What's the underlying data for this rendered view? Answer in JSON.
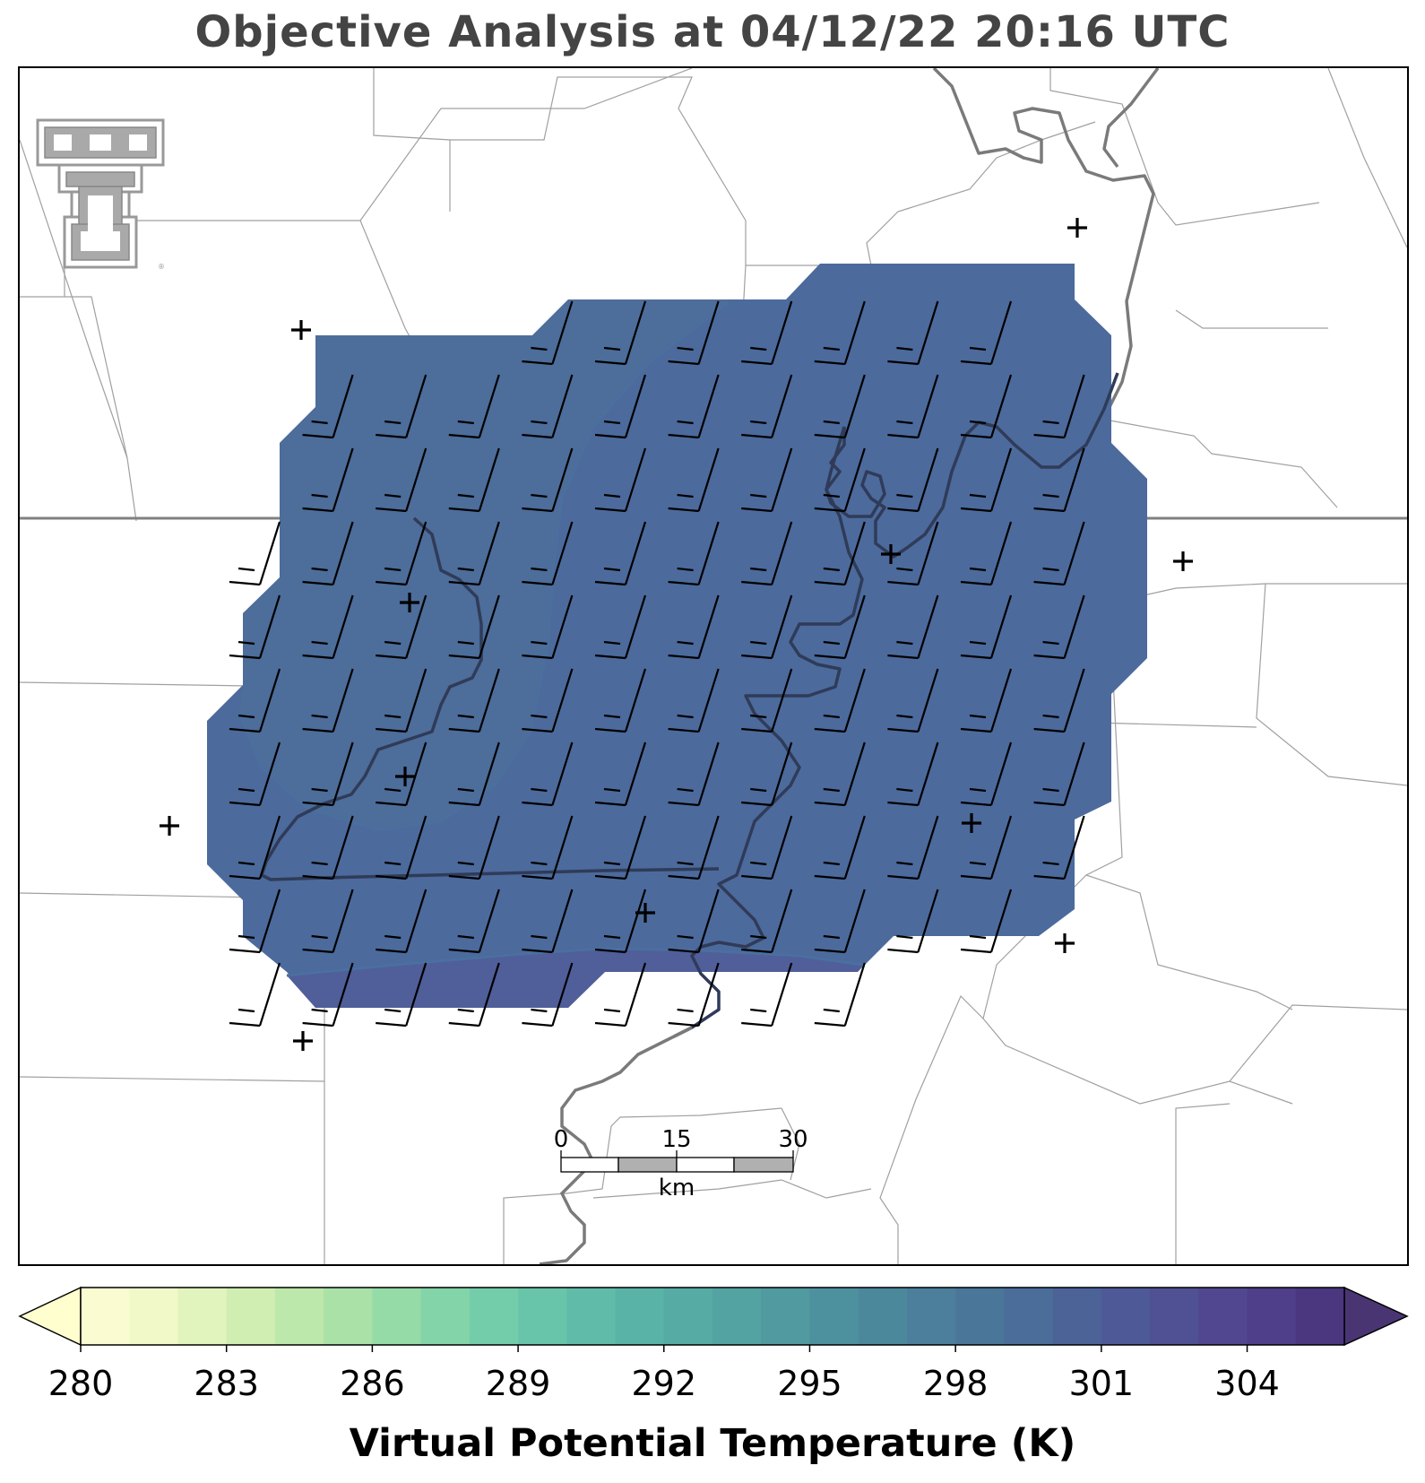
{
  "title": "Objective Analysis at 04/12/22 20:16 UTC",
  "colorbar": {
    "label": "Virtual Potential Temperature (K)",
    "ticks": [
      "280",
      "283",
      "286",
      "289",
      "292",
      "295",
      "298",
      "301",
      "304"
    ],
    "min": 280,
    "max": 306,
    "step": 1,
    "extend": "both",
    "colors": [
      "#fbfbd1",
      "#f1f9c9",
      "#e2f4bd",
      "#d0eeb2",
      "#bde8ab",
      "#a9e1a7",
      "#95dba7",
      "#83d4a9",
      "#74cdaa",
      "#68c5aa",
      "#60bca9",
      "#5ab3a7",
      "#56aba5",
      "#53a3a2",
      "#509aa0",
      "#4e919e",
      "#4c889c",
      "#4b7f9b",
      "#4a769a",
      "#4b6d99",
      "#4c6398",
      "#4e5997",
      "#505094",
      "#514790",
      "#4f3e89",
      "#4b3680"
    ],
    "under_color": "#fefecf",
    "over_color": "#4a3573"
  },
  "map": {
    "analysis_fill_color": "#4c6a9c",
    "warm_pocket_color": "#505e9a",
    "warm_pocket_value": 302,
    "analysis_value": 300,
    "contour_color": "#4a6fa0",
    "river_color": "#7a7a7a",
    "boundary_color": "#a0a0a0",
    "logo": "texas-tech-double-t-logo",
    "station_marker": "plus",
    "wind_barbs": "uniform southwesterly 15 kt barbs"
  },
  "scale_bar": {
    "labels": [
      "0",
      "15",
      "30"
    ],
    "unit": "km"
  }
}
